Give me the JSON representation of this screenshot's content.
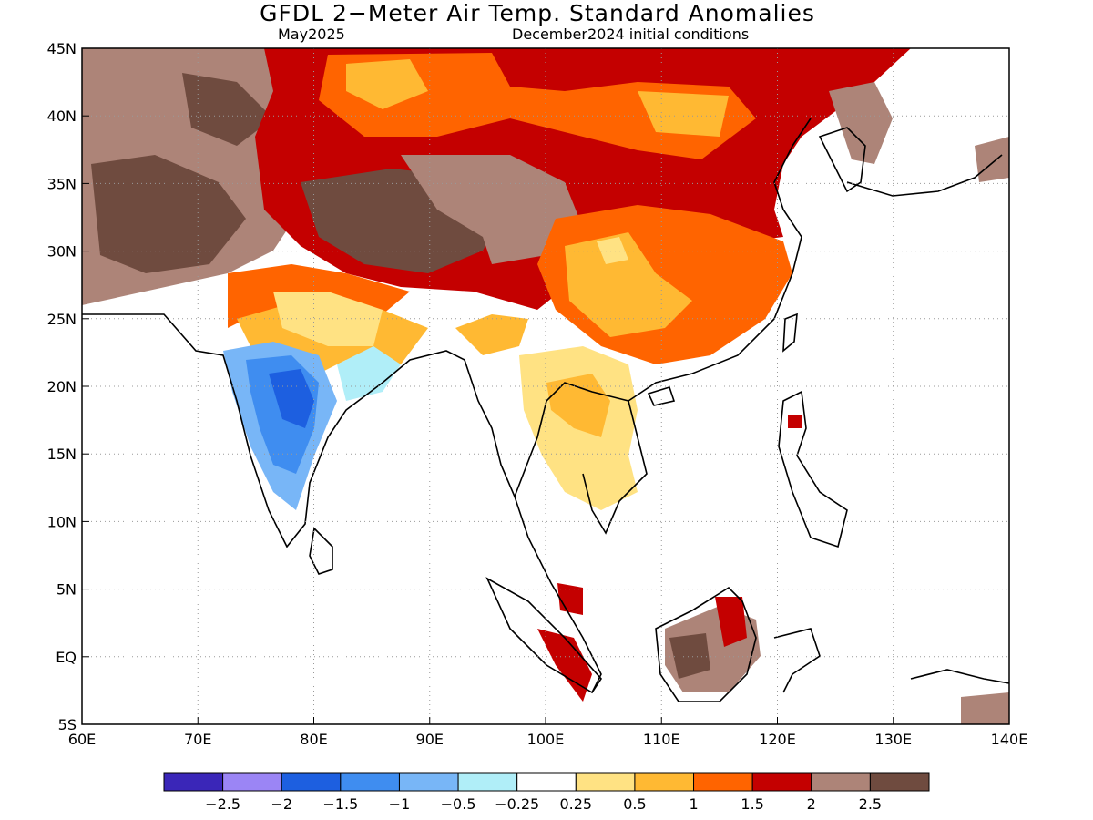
{
  "title": "GFDL 2−Meter Air Temp. Standard Anomalies",
  "valid_label": "May2025",
  "init_label": "December2024 initial conditions",
  "lat_ticks": [
    {
      "lat": 45,
      "label": "45N"
    },
    {
      "lat": 40,
      "label": "40N"
    },
    {
      "lat": 35,
      "label": "35N"
    },
    {
      "lat": 30,
      "label": "30N"
    },
    {
      "lat": 25,
      "label": "25N"
    },
    {
      "lat": 20,
      "label": "20N"
    },
    {
      "lat": 15,
      "label": "15N"
    },
    {
      "lat": 10,
      "label": "10N"
    },
    {
      "lat": 5,
      "label": "5N"
    },
    {
      "lat": 0,
      "label": "EQ"
    },
    {
      "lat": -5,
      "label": "5S"
    }
  ],
  "lon_ticks": [
    {
      "lon": 60,
      "label": "60E"
    },
    {
      "lon": 70,
      "label": "70E"
    },
    {
      "lon": 80,
      "label": "80E"
    },
    {
      "lon": 90,
      "label": "90E"
    },
    {
      "lon": 100,
      "label": "100E"
    },
    {
      "lon": 110,
      "label": "110E"
    },
    {
      "lon": 120,
      "label": "120E"
    },
    {
      "lon": 130,
      "label": "130E"
    },
    {
      "lon": 140,
      "label": "140E"
    }
  ],
  "legend": {
    "colors": [
      "#3a26b8",
      "#9b85f5",
      "#1d5fe0",
      "#3f8df0",
      "#78b6f7",
      "#b0eef8",
      "#ffffff",
      "#ffe283",
      "#ffb933",
      "#ff6400",
      "#c40000",
      "#ad8478",
      "#6f4b3f"
    ],
    "labels": [
      "−2.5",
      "−2",
      "−1.5",
      "−1",
      "−0.5",
      "−0.25",
      "0.25",
      "0.5",
      "1",
      "1.5",
      "2",
      "2.5"
    ]
  },
  "anomaly_colors": {
    "brown_dark": "#6f4b3f",
    "brown": "#ad8478",
    "dark_red": "#c40000",
    "orange_red": "#ff6400",
    "orange": "#ffb933",
    "yellow": "#ffe283",
    "light_cyan": "#b0eef8",
    "light_blue": "#78b6f7",
    "blue": "#3f8df0",
    "deep_blue": "#1d5fe0"
  }
}
